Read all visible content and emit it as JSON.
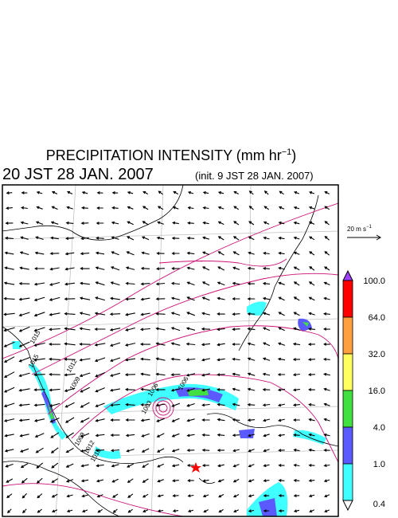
{
  "title": {
    "text": "PRECIPITATION INTENSITY (mm hr",
    "sup": "−1",
    "end": ")"
  },
  "valid_time": "20 JST 28 JAN. 2007",
  "init_time": "(init. 9 JST 28 JAN. 2007)",
  "wind_scale": {
    "text": "20 m s",
    "sup": "−1"
  },
  "colorbar": {
    "labels": [
      "100.0",
      "64.0",
      "32.0",
      "16.0",
      "4.0",
      "1.0",
      "0.4"
    ],
    "over_color": "#a040ff",
    "under_color": "#ffffff",
    "colors": [
      "#ff0000",
      "#ffa040",
      "#ffff60",
      "#40e040",
      "#5a5aff",
      "#40ffff"
    ]
  },
  "contour_labels": [
    "1015",
    "1015",
    "1012",
    "1009",
    "1006",
    "1006",
    "1003",
    "1009",
    "1012",
    "1015"
  ]
}
